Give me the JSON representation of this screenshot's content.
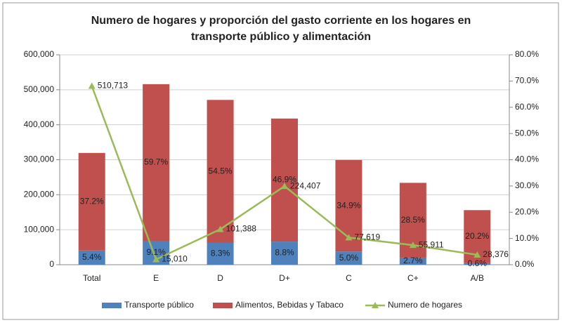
{
  "chart_data": {
    "type": "bar",
    "title": [
      "Numero de hogares y proporción del gasto corriente en los hogares en",
      "transporte público y alimentación"
    ],
    "categories": [
      "Total",
      "E",
      "D",
      "D+",
      "C",
      "C+",
      "A/B"
    ],
    "series": [
      {
        "name": "Transporte público",
        "type": "bar",
        "axis": "y2",
        "color": "#4f81bd",
        "values": [
          5.4,
          9.1,
          8.3,
          8.8,
          5.0,
          2.7,
          0.6
        ],
        "value_labels": [
          "5.4%",
          "9.1%",
          "8.3%",
          "8.8%",
          "5.0%",
          "2.7%",
          "0.6%"
        ]
      },
      {
        "name": "Alimentos, Bebidas y Tabaco",
        "type": "bar",
        "axis": "y2",
        "color": "#c0504d",
        "values": [
          37.2,
          59.7,
          54.5,
          46.9,
          34.9,
          28.5,
          20.2
        ],
        "value_labels": [
          "37.2%",
          "59.7%",
          "54.5%",
          "46.9%",
          "34.9%",
          "28.5%",
          "20.2%"
        ]
      },
      {
        "name": "Numero de hogares",
        "type": "line",
        "axis": "y",
        "color": "#9bbb59",
        "values": [
          510713,
          15010,
          101388,
          224407,
          77619,
          55911,
          28376
        ],
        "value_labels": [
          "510,713",
          "15,010",
          "101,388",
          "224,407",
          "77,619",
          "55,911",
          "28,376"
        ]
      }
    ],
    "ylim": [
      0,
      600000
    ],
    "yticks": [
      0,
      {
        "value": 100000,
        "label": "100,000"
      },
      {
        "value": 200000,
        "label": "200,000"
      },
      {
        "value": 300000,
        "label": "300,000"
      },
      {
        "value": 400000,
        "label": "400,000"
      },
      {
        "value": 500000,
        "label": "500,000"
      },
      {
        "value": 600000,
        "label": "600,000"
      }
    ],
    "y2lim": [
      0,
      80
    ],
    "y2ticks": [
      {
        "value": 0,
        "label": "0.0%"
      },
      {
        "value": 10,
        "label": "10.0%"
      },
      {
        "value": 20,
        "label": "20.0%"
      },
      {
        "value": 30,
        "label": "30.0%"
      },
      {
        "value": 40,
        "label": "40.0%"
      },
      {
        "value": 50,
        "label": "50.0%"
      },
      {
        "value": 60,
        "label": "60.0%"
      },
      {
        "value": 70,
        "label": "70.0%"
      },
      {
        "value": 80,
        "label": "80.0%"
      }
    ],
    "grid": true,
    "legend": "bottom"
  }
}
